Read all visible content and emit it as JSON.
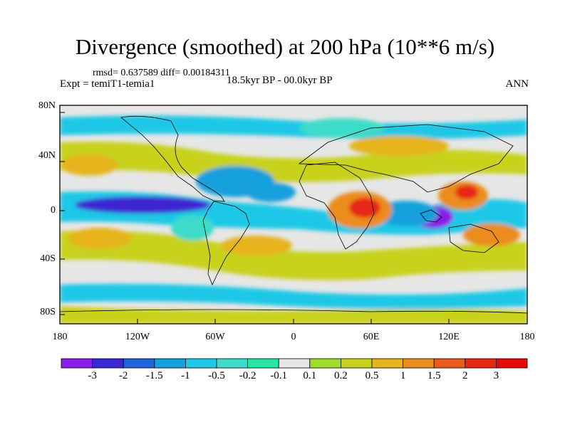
{
  "title": "Divergence (smoothed) at 200 hPa (10**6 m/s)",
  "stats": "rmsd= 0.637589  diff= 0.00184311",
  "experiment": "Expt = temiT1-temia1",
  "period": "18.5kyr BP - 00.0kyr BP",
  "season": "ANN",
  "lat_labels": [
    "80N",
    "40N",
    "0",
    "40S",
    "80S"
  ],
  "lon_labels": [
    "180",
    "120W",
    "60W",
    "0",
    "60E",
    "120E",
    "180"
  ],
  "colorbar": {
    "labels": [
      "-3",
      "-2",
      "-1.5",
      "-1",
      "-0.5",
      "-0.2",
      "-0.1",
      "0.1",
      "0.2",
      "0.5",
      "1",
      "1.5",
      "2",
      "3"
    ],
    "colors": [
      "#8a1ee6",
      "#3c28d2",
      "#1e64dc",
      "#14a0dc",
      "#1ec8e6",
      "#3cdcc8",
      "#28e6a0",
      "#e6e6e6",
      "#a0dc28",
      "#c8d21e",
      "#e6b41e",
      "#eb8c1e",
      "#eb5a1e",
      "#e62814",
      "#e60a0a"
    ]
  },
  "features": [
    {
      "label": "central-pacific-negative-band",
      "lon": -150,
      "lat": 2,
      "level": 1
    },
    {
      "label": "indonesia-negative-center",
      "lon": 108,
      "lat": -6,
      "level": 0
    },
    {
      "label": "africa-positive-center",
      "lon": 52,
      "lat": 0,
      "level": 13
    },
    {
      "label": "west-pacific-positive-center",
      "lon": 138,
      "lat": 8,
      "level": 13
    },
    {
      "label": "north-pacific-positive-lobe",
      "lon": -165,
      "lat": 28,
      "level": 11
    },
    {
      "label": "southwest-pacific-positive-lobe",
      "lon": 152,
      "lat": -15,
      "level": 12
    },
    {
      "label": "south-pacific-positive-lobe",
      "lon": -150,
      "lat": -15,
      "level": 11
    },
    {
      "label": "south-atlantic-positive-lobe",
      "lon": -30,
      "lat": -25,
      "level": 10
    },
    {
      "label": "eastern-pacific-negative-lobe",
      "lon": -95,
      "lat": 18,
      "level": 3
    },
    {
      "label": "north-atlantic-negative-lobe",
      "lon": -45,
      "lat": 22,
      "level": 4
    },
    {
      "label": "indian-ocean-negative-lobe",
      "lon": 80,
      "lat": -5,
      "level": 4
    },
    {
      "label": "arctic-negative-lobe",
      "lon": 20,
      "lat": 70,
      "level": 5
    }
  ]
}
